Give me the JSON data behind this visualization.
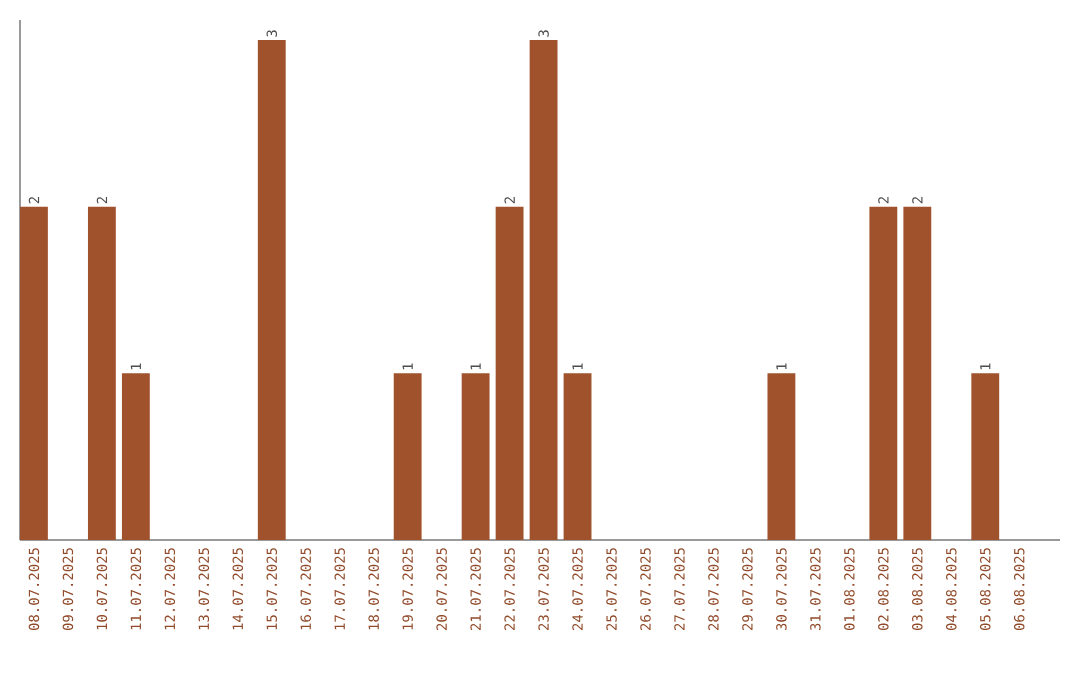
{
  "chart_data": {
    "type": "bar",
    "color": "#a0522d",
    "categories": [
      "08.07.2025",
      "09.07.2025",
      "10.07.2025",
      "11.07.2025",
      "12.07.2025",
      "13.07.2025",
      "14.07.2025",
      "15.07.2025",
      "16.07.2025",
      "17.07.2025",
      "18.07.2025",
      "19.07.2025",
      "20.07.2025",
      "21.07.2025",
      "22.07.2025",
      "23.07.2025",
      "24.07.2025",
      "25.07.2025",
      "26.07.2025",
      "27.07.2025",
      "28.07.2025",
      "29.07.2025",
      "30.07.2025",
      "31.07.2025",
      "01.08.2025",
      "02.08.2025",
      "03.08.2025",
      "04.08.2025",
      "05.08.2025",
      "06.08.2025"
    ],
    "values": [
      2,
      0,
      2,
      1,
      0,
      0,
      0,
      3,
      0,
      0,
      0,
      1,
      0,
      1,
      2,
      3,
      1,
      0,
      0,
      0,
      0,
      0,
      1,
      0,
      0,
      2,
      2,
      0,
      1,
      0
    ],
    "value_labels": [
      "2",
      null,
      "2",
      "1",
      null,
      null,
      null,
      "3",
      null,
      null,
      null,
      "1",
      null,
      "1",
      "2",
      "3",
      "1",
      null,
      null,
      null,
      null,
      null,
      "1",
      null,
      null,
      "2",
      "2",
      null,
      "1",
      null
    ]
  }
}
